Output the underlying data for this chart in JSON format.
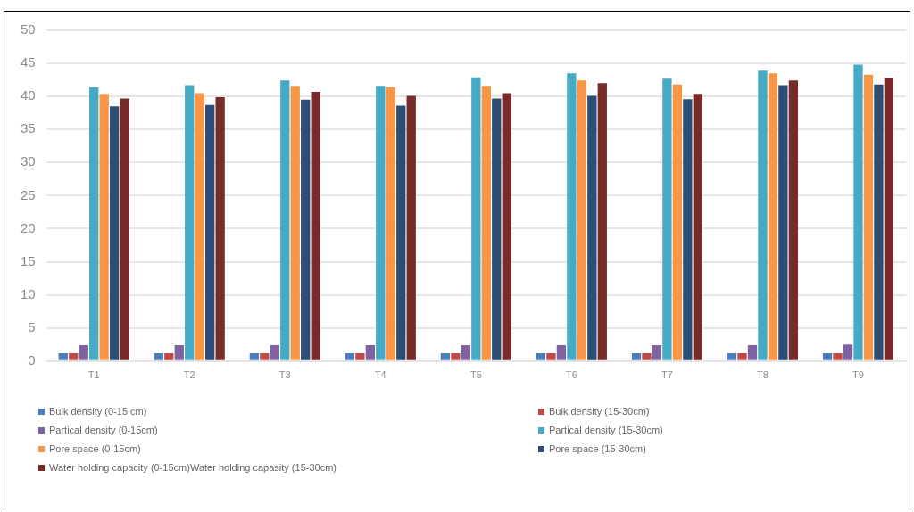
{
  "chart_data": {
    "type": "bar",
    "categories": [
      "T1",
      "T2",
      "T3",
      "T4",
      "T5",
      "T6",
      "T7",
      "T8",
      "T9"
    ],
    "series": [
      {
        "name": "Bulk density (0-15 cm)",
        "color": "#4a7ebb",
        "values": [
          1.2,
          1.2,
          1.2,
          1.2,
          1.2,
          1.2,
          1.2,
          1.2,
          1.2
        ]
      },
      {
        "name": "Bulk density (15-30cm)",
        "color": "#be4b48",
        "values": [
          1.2,
          1.2,
          1.2,
          1.2,
          1.2,
          1.2,
          1.2,
          1.2,
          1.2
        ]
      },
      {
        "name": "Partical density (0-15cm)",
        "color": "#7f63a0",
        "values": [
          2.4,
          2.4,
          2.4,
          2.4,
          2.4,
          2.4,
          2.4,
          2.4,
          2.5
        ]
      },
      {
        "name": "Partical density (15-30cm)",
        "color": "#46aac5",
        "values": [
          41.4,
          41.7,
          42.4,
          41.6,
          42.9,
          43.5,
          42.7,
          43.9,
          44.8
        ]
      },
      {
        "name": "Pore space (0-15cm)",
        "color": "#f79646",
        "values": [
          40.4,
          40.5,
          41.6,
          41.4,
          41.6,
          42.4,
          41.8,
          43.5,
          43.3
        ]
      },
      {
        "name": "Pore space (15-30cm)",
        "color": "#2c4d75",
        "values": [
          38.5,
          38.7,
          39.5,
          38.6,
          39.7,
          40.1,
          39.6,
          41.7,
          41.8
        ]
      },
      {
        "name": "Water holding capacity (0-15cm)Water holding capasity (15-30cm)",
        "color": "#772c2a",
        "values": [
          39.7,
          39.9,
          40.7,
          40.1,
          40.5,
          42.0,
          40.4,
          42.4,
          42.8
        ]
      }
    ],
    "ylim": [
      0,
      50
    ],
    "yticks": [
      0,
      5,
      10,
      15,
      20,
      25,
      30,
      35,
      40,
      45,
      50
    ],
    "grid": "y",
    "legend": "bottom"
  }
}
